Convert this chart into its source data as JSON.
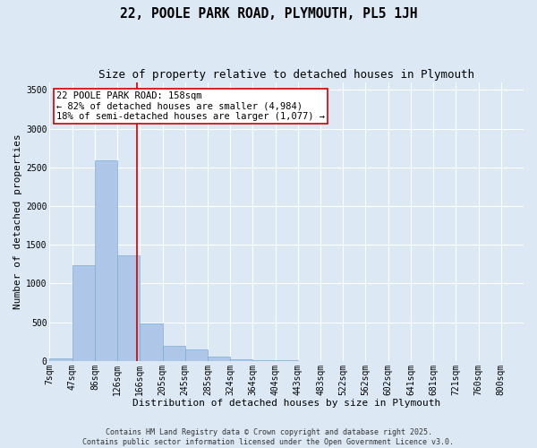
{
  "title": "22, POOLE PARK ROAD, PLYMOUTH, PL5 1JH",
  "subtitle": "Size of property relative to detached houses in Plymouth",
  "xlabel": "Distribution of detached houses by size in Plymouth",
  "ylabel": "Number of detached properties",
  "categories": [
    "7sqm",
    "47sqm",
    "86sqm",
    "126sqm",
    "166sqm",
    "205sqm",
    "245sqm",
    "285sqm",
    "324sqm",
    "364sqm",
    "404sqm",
    "443sqm",
    "483sqm",
    "522sqm",
    "562sqm",
    "602sqm",
    "641sqm",
    "681sqm",
    "721sqm",
    "760sqm",
    "800sqm"
  ],
  "bar_heights": [
    30,
    1240,
    2590,
    1360,
    480,
    190,
    150,
    50,
    20,
    10,
    5,
    0,
    0,
    0,
    0,
    0,
    0,
    0,
    0,
    0,
    0
  ],
  "bar_color": "#aec6e8",
  "bar_edge_color": "#7aaed4",
  "vline_x_index": 3.85,
  "vline_color": "#cc0000",
  "annotation_text": "22 POOLE PARK ROAD: 158sqm\n← 82% of detached houses are smaller (4,984)\n18% of semi-detached houses are larger (1,077) →",
  "annotation_box_color": "#cc0000",
  "ylim": [
    0,
    3600
  ],
  "yticks": [
    0,
    500,
    1000,
    1500,
    2000,
    2500,
    3000,
    3500
  ],
  "background_color": "#dce9f5",
  "grid_color": "#ffffff",
  "footer_text": "Contains HM Land Registry data © Crown copyright and database right 2025.\nContains public sector information licensed under the Open Government Licence v3.0.",
  "title_fontsize": 10.5,
  "subtitle_fontsize": 9,
  "label_fontsize": 8,
  "tick_fontsize": 7,
  "annotation_fontsize": 7.5,
  "footer_fontsize": 6
}
